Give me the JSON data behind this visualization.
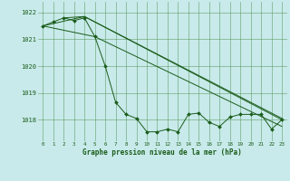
{
  "title": "Graphe pression niveau de la mer (hPa)",
  "bg_color": "#c8eaea",
  "grid_color": "#4a8a4a",
  "line_color": "#1a5c1a",
  "xlim": [
    -0.5,
    23.5
  ],
  "ylim": [
    1017.2,
    1022.4
  ],
  "yticks": [
    1018,
    1019,
    1020,
    1021,
    1022
  ],
  "xticks": [
    0,
    1,
    2,
    3,
    4,
    5,
    6,
    7,
    8,
    9,
    10,
    11,
    12,
    13,
    14,
    15,
    16,
    17,
    18,
    19,
    20,
    21,
    22,
    23
  ],
  "xtick_labels": [
    "0",
    "1",
    "2",
    "3",
    "4",
    "5",
    "6",
    "7",
    "8",
    "9",
    "10",
    "11",
    "12",
    "13",
    "14",
    "15",
    "16",
    "17",
    "18",
    "19",
    "20",
    "21",
    "22",
    "23"
  ],
  "series_main": [
    1021.5,
    1021.65,
    1021.8,
    1021.7,
    1021.8,
    1021.1,
    1020.0,
    1018.65,
    1018.2,
    1018.05,
    1017.55,
    1017.55,
    1017.65,
    1017.55,
    1018.2,
    1018.25,
    1017.9,
    1017.75,
    1018.1,
    1018.2,
    1018.2,
    1018.2,
    1017.65,
    1018.0
  ],
  "trend1_x": [
    0,
    4,
    23
  ],
  "trend1_y": [
    1021.5,
    1021.85,
    1018.0
  ],
  "trend2_x": [
    0,
    5,
    23
  ],
  "trend2_y": [
    1021.5,
    1021.1,
    1017.75
  ],
  "trend3_x": [
    2,
    4,
    23
  ],
  "trend3_y": [
    1021.8,
    1021.85,
    1018.05
  ]
}
